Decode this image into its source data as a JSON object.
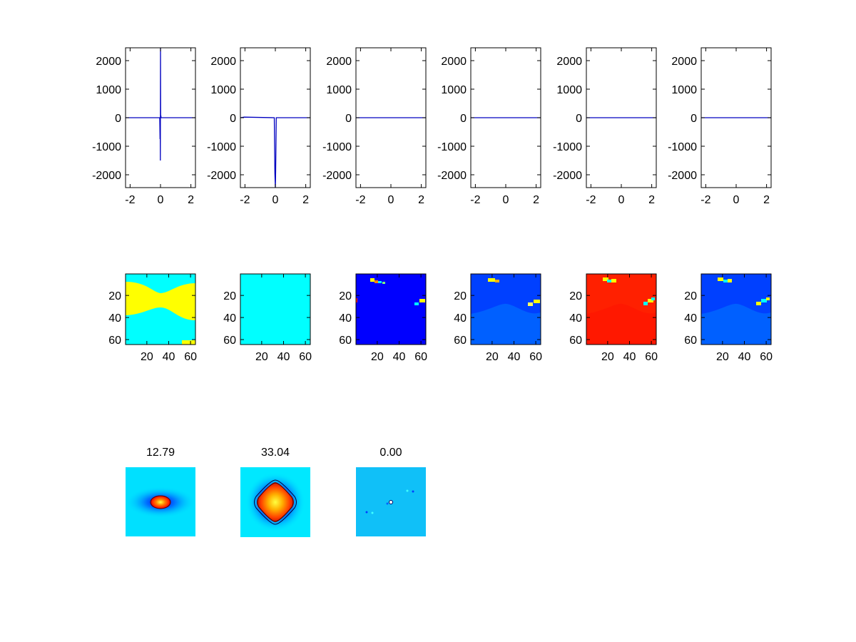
{
  "colors": {
    "line": "#0000c0",
    "cyan": "#00ffff",
    "yellow": "#ffff00",
    "dark_blue": "#0000ff",
    "mid_blue": "#0050ff",
    "light_blue": "#10c0f8",
    "red": "#ff2000",
    "orange": "#ff8000"
  },
  "chart_data": [
    {
      "type": "line",
      "row": 1,
      "panel": 1,
      "xlim": [
        -2.3,
        2.3
      ],
      "ylim": [
        -2450,
        2450
      ],
      "xticks": [
        -2,
        0,
        2
      ],
      "yticks": [
        2000,
        1000,
        0,
        -1000,
        -2000
      ],
      "x": [
        -2.3,
        -0.05,
        -0.03,
        -0.02,
        -0.01,
        0,
        0.01,
        0.02,
        0.04,
        2.3
      ],
      "y": [
        0,
        0,
        -750,
        0,
        -1500,
        2450,
        0,
        80,
        0,
        0
      ]
    },
    {
      "type": "line",
      "row": 1,
      "panel": 2,
      "xlim": [
        -2.3,
        2.3
      ],
      "ylim": [
        -2450,
        2450
      ],
      "xticks": [
        -2,
        0,
        2
      ],
      "yticks": [
        2000,
        1000,
        0,
        -1000,
        -2000
      ],
      "x": [
        -2.3,
        -2.05,
        -0.07,
        -0.03,
        0,
        0.02,
        0.06,
        2.3
      ],
      "y": [
        0,
        20,
        0,
        -1950,
        -2450,
        -1900,
        0,
        0
      ]
    },
    {
      "type": "line",
      "row": 1,
      "panel": 3,
      "xlim": [
        -2.3,
        2.3
      ],
      "ylim": [
        -2450,
        2450
      ],
      "xticks": [
        -2,
        0,
        2
      ],
      "yticks": [
        2000,
        1000,
        0,
        -1000,
        -2000
      ],
      "x": [
        -2.3,
        2.3
      ],
      "y": [
        0,
        0
      ]
    },
    {
      "type": "line",
      "row": 1,
      "panel": 4,
      "xlim": [
        -2.3,
        2.3
      ],
      "ylim": [
        -2450,
        2450
      ],
      "xticks": [
        -2,
        0,
        2
      ],
      "yticks": [
        2000,
        1000,
        0,
        -1000,
        -2000
      ],
      "x": [
        -2.3,
        2.3
      ],
      "y": [
        0,
        0
      ]
    },
    {
      "type": "line",
      "row": 1,
      "panel": 5,
      "xlim": [
        -2.3,
        2.3
      ],
      "ylim": [
        -2450,
        2450
      ],
      "xticks": [
        -2,
        0,
        2
      ],
      "yticks": [
        2000,
        1000,
        0,
        -1000,
        -2000
      ],
      "x": [
        -2.3,
        2.3
      ],
      "y": [
        0,
        0
      ]
    },
    {
      "type": "line",
      "row": 1,
      "panel": 6,
      "xlim": [
        -2.3,
        2.3
      ],
      "ylim": [
        -2450,
        2450
      ],
      "xticks": [
        -2,
        0,
        2
      ],
      "yticks": [
        2000,
        1000,
        0,
        -1000,
        -2000
      ],
      "x": [
        -2.3,
        2.3
      ],
      "y": [
        0,
        0
      ]
    },
    {
      "type": "heatmap",
      "row": 2,
      "panel": 1,
      "xlim": [
        0.5,
        64.5
      ],
      "ylim": [
        0.5,
        64.5
      ],
      "xticks": [
        20,
        40,
        60
      ],
      "yticks": [
        20,
        40,
        60
      ],
      "background": "#00ffff",
      "bands": [
        {
          "color": "#ffff00",
          "rows_top": [
            5,
            30
          ],
          "rows_bottom": [
            28,
            45
          ]
        }
      ]
    },
    {
      "type": "heatmap",
      "row": 2,
      "panel": 2,
      "xlim": [
        0.5,
        64.5
      ],
      "ylim": [
        0.5,
        64.5
      ],
      "xticks": [
        20,
        40,
        60
      ],
      "yticks": [
        20,
        40,
        60
      ],
      "background": "#00ffff"
    },
    {
      "type": "heatmap",
      "row": 2,
      "panel": 3,
      "xlim": [
        0.5,
        64.5
      ],
      "ylim": [
        0.5,
        64.5
      ],
      "xticks": [
        20,
        40,
        60
      ],
      "yticks": [
        20,
        40,
        60
      ],
      "background": "#0000ff"
    },
    {
      "type": "heatmap",
      "row": 2,
      "panel": 4,
      "xlim": [
        0.5,
        64.5
      ],
      "ylim": [
        0.5,
        64.5
      ],
      "xticks": [
        20,
        40,
        60
      ],
      "yticks": [
        20,
        40,
        60
      ],
      "background": "#0050ff"
    },
    {
      "type": "heatmap",
      "row": 2,
      "panel": 5,
      "xlim": [
        0.5,
        64.5
      ],
      "ylim": [
        0.5,
        64.5
      ],
      "xticks": [
        20,
        40,
        60
      ],
      "yticks": [
        20,
        40,
        60
      ],
      "background": "#ff2000"
    },
    {
      "type": "heatmap",
      "row": 2,
      "panel": 6,
      "xlim": [
        0.5,
        64.5
      ],
      "ylim": [
        0.5,
        64.5
      ],
      "xticks": [
        20,
        40,
        60
      ],
      "yticks": [
        20,
        40,
        60
      ],
      "background": "#0050ff"
    },
    {
      "type": "heatmap",
      "row": 3,
      "panel": 1,
      "title": "12.79",
      "background": "#00e0ff"
    },
    {
      "type": "heatmap",
      "row": 3,
      "panel": 2,
      "title": "33.04",
      "background": "#00e8ff"
    },
    {
      "type": "heatmap",
      "row": 3,
      "panel": 3,
      "title": "0.00",
      "background": "#10c0f8"
    }
  ]
}
